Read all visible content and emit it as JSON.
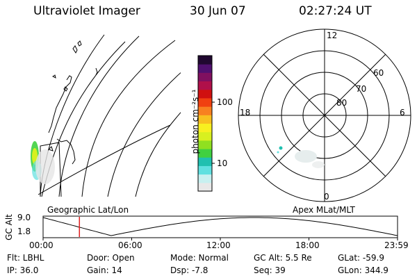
{
  "header": {
    "instrument": "Ultraviolet Imager",
    "date": "30 Jun 07",
    "time": "02:27:24 UT"
  },
  "colorbar": {
    "unit_label": "photon cm⁻²s⁻¹",
    "tick_100": "100",
    "tick_10": "10",
    "colors": [
      "#e8e8e8",
      "#c8f0f0",
      "#60e0e0",
      "#20c0b0",
      "#40d040",
      "#90e020",
      "#d8f020",
      "#f8f020",
      "#f8c020",
      "#f88020",
      "#f04010",
      "#d01010",
      "#b0104a",
      "#801060",
      "#501070",
      "#200830"
    ]
  },
  "polar_plot": {
    "label_top": "12",
    "label_left": "18",
    "label_right": "6",
    "label_bottom": "0",
    "ring_60": "60",
    "ring_70": "70",
    "ring_80": "80"
  },
  "timeline": {
    "left_label": "Geographic Lat/Lon",
    "right_label": "Apex MLat/MLT",
    "yaxis_label": "GC Alt",
    "ymax": "9.0",
    "ymin": "1.8",
    "ticks": [
      "00:00",
      "06:00",
      "12:00",
      "18:00",
      "23:59"
    ],
    "marker_time_hours": 2.46
  },
  "info": {
    "flt": "Flt: LBHL",
    "ip": "IP: 36.0",
    "door": "Door: Open",
    "gain": "Gain: 14",
    "mode": "Mode: Normal",
    "dsp": "Dsp:    -7.8",
    "gc_alt": "GC Alt: 5.5 Re",
    "seq": "Seq: 39",
    "glat": "GLat: -59.9",
    "glon": "GLon: 344.9"
  }
}
